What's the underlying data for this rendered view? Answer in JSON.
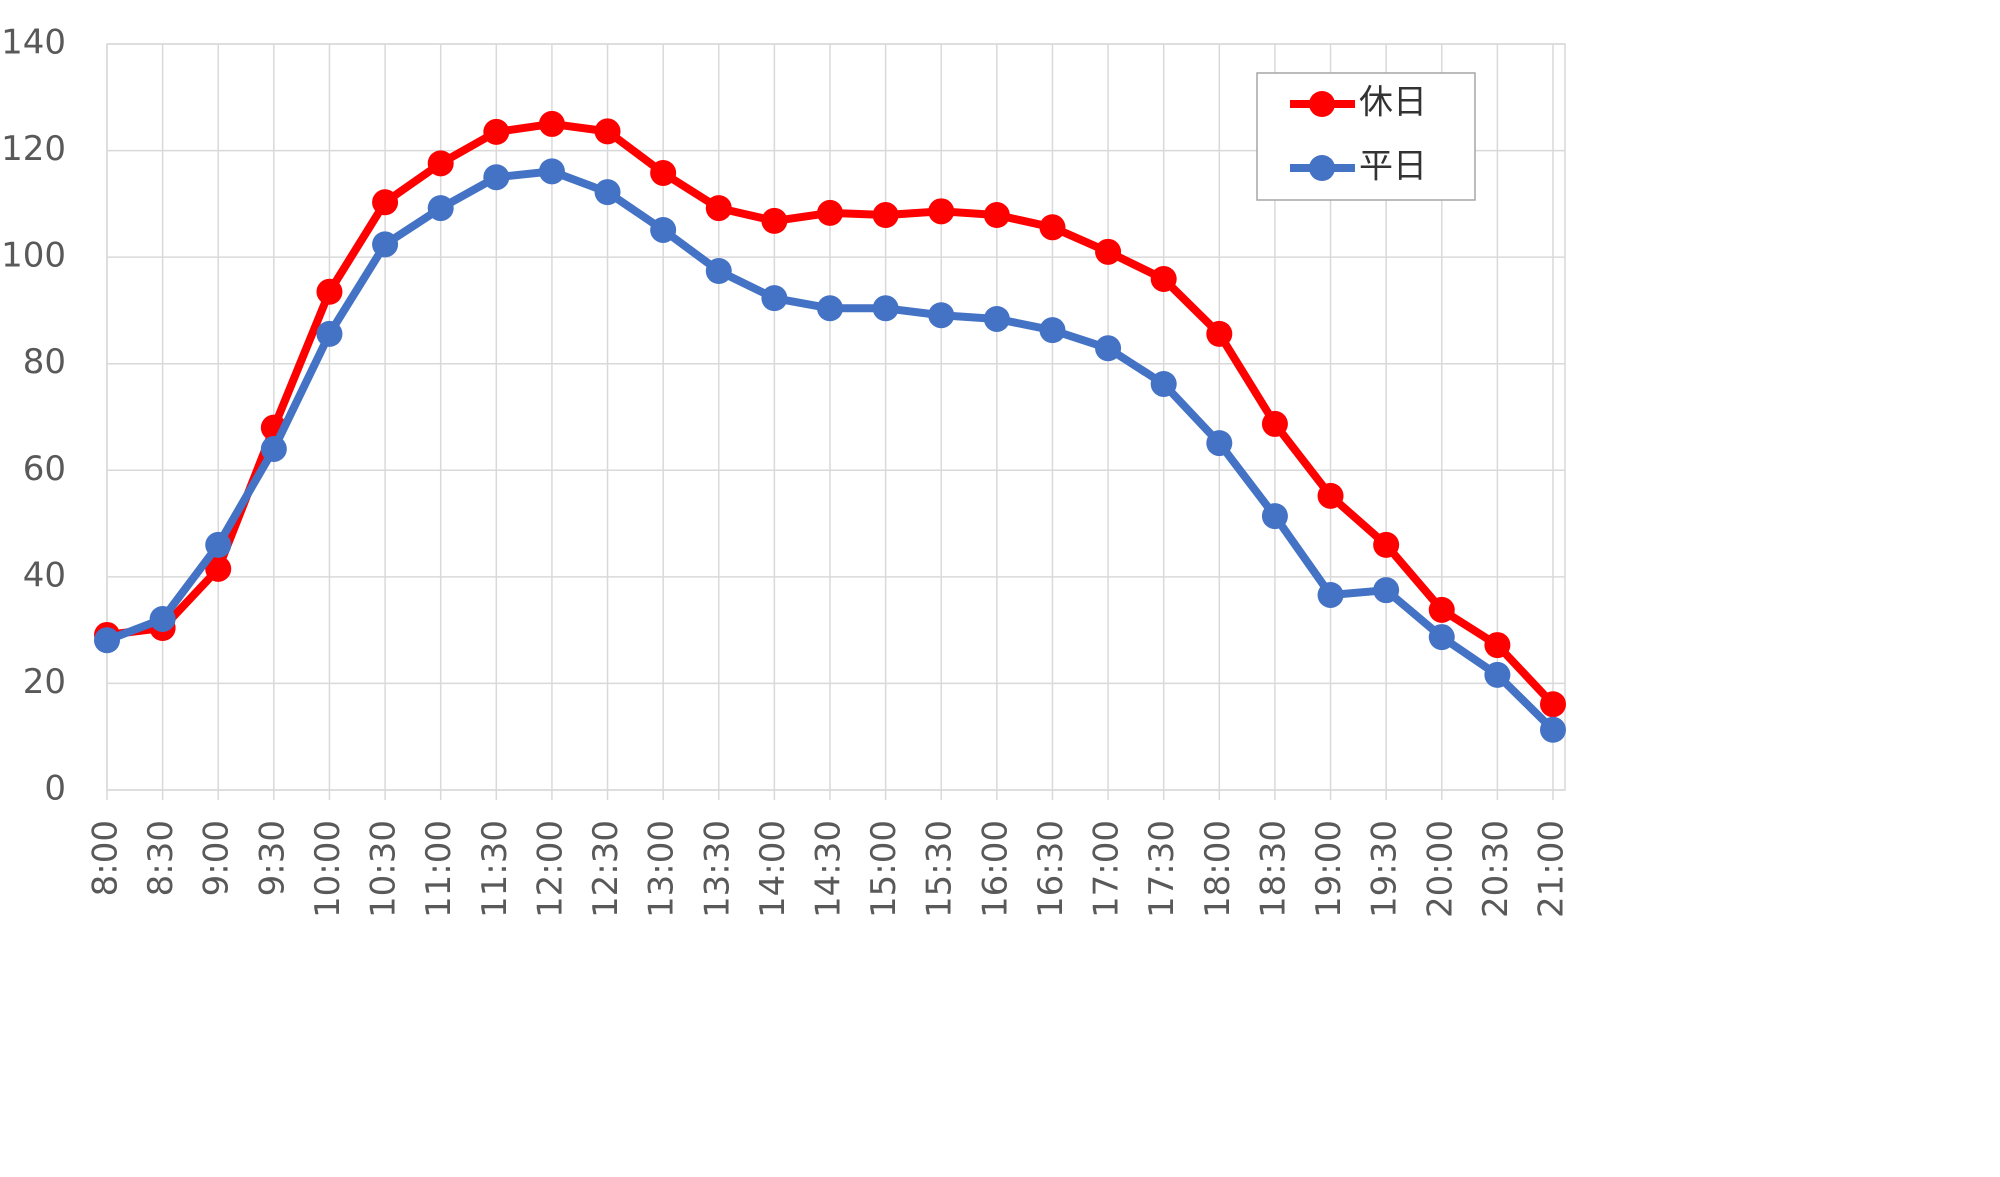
{
  "chart_data": {
    "type": "line",
    "categories": [
      "8:00",
      "8:30",
      "9:00",
      "9:30",
      "10:00",
      "10:30",
      "11:00",
      "11:30",
      "12:00",
      "12:30",
      "13:00",
      "13:30",
      "14:00",
      "14:30",
      "15:00",
      "15:30",
      "16:00",
      "16:30",
      "17:00",
      "17:30",
      "18:00",
      "18:30",
      "19:00",
      "19:30",
      "20:00",
      "20:30",
      "21:00"
    ],
    "series": [
      {
        "name": "休日",
        "color": "#ff0000",
        "values": [
          29.1,
          30.4,
          41.5,
          68,
          93.5,
          110.3,
          117.6,
          123.5,
          125,
          123.6,
          115.8,
          109.2,
          106.8,
          108.3,
          107.9,
          108.6,
          107.9,
          105.6,
          101,
          95.9,
          85.6,
          68.7,
          55.2,
          46,
          33.8,
          27.2,
          16.1
        ]
      },
      {
        "name": "平日",
        "color": "#4472c4",
        "values": [
          28.1,
          32.1,
          46,
          64,
          85.6,
          102.4,
          109.2,
          115,
          116.1,
          112.2,
          105.1,
          97.4,
          92.3,
          90.4,
          90.4,
          89.1,
          88.4,
          86.3,
          82.9,
          76.2,
          65.1,
          51.4,
          36.6,
          37.5,
          28.7,
          21.6,
          11.3
        ]
      }
    ],
    "ylim": [
      0,
      140
    ],
    "yticks": [
      0,
      20,
      40,
      60,
      80,
      100,
      120,
      140
    ],
    "grid": true,
    "legend": "upper right"
  }
}
